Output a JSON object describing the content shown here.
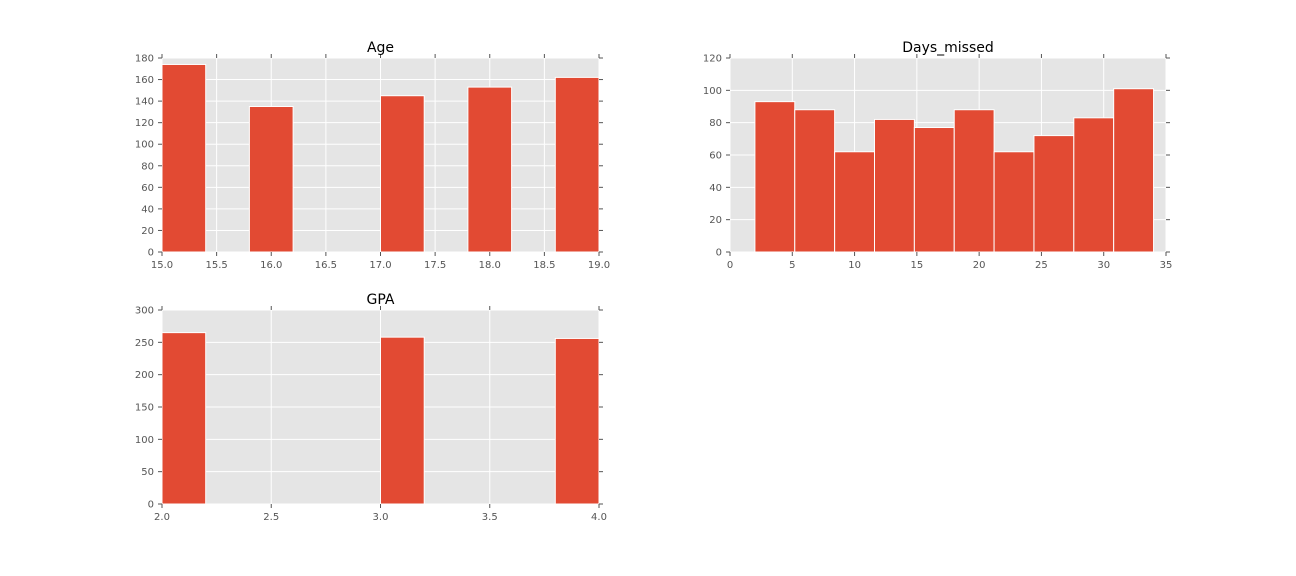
{
  "colors": {
    "bar": "#E24A33",
    "plot_bg": "#E5E5E5",
    "grid": "#FFFFFF",
    "tick_text": "#555555"
  },
  "chart_data": [
    {
      "type": "bar",
      "title": "Age",
      "xlabel": "",
      "ylabel": "",
      "xlim": [
        15.0,
        19.0
      ],
      "ylim": [
        0,
        180
      ],
      "xticks": [
        "15.0",
        "15.5",
        "16.0",
        "16.5",
        "17.0",
        "17.5",
        "18.0",
        "18.5",
        "19.0"
      ],
      "yticks": [
        "0",
        "20",
        "40",
        "60",
        "80",
        "100",
        "120",
        "140",
        "160",
        "180"
      ],
      "grid": true,
      "bins": [
        {
          "x0": 15.0,
          "x1": 15.4,
          "value": 174
        },
        {
          "x0": 15.4,
          "x1": 15.8,
          "value": 0
        },
        {
          "x0": 15.8,
          "x1": 16.2,
          "value": 135
        },
        {
          "x0": 16.2,
          "x1": 16.6,
          "value": 0
        },
        {
          "x0": 16.6,
          "x1": 17.0,
          "value": 0
        },
        {
          "x0": 17.0,
          "x1": 17.4,
          "value": 145
        },
        {
          "x0": 17.4,
          "x1": 17.8,
          "value": 0
        },
        {
          "x0": 17.8,
          "x1": 18.2,
          "value": 153
        },
        {
          "x0": 18.2,
          "x1": 18.6,
          "value": 0
        },
        {
          "x0": 18.6,
          "x1": 19.0,
          "value": 162
        }
      ]
    },
    {
      "type": "bar",
      "title": "Days_missed",
      "xlabel": "",
      "ylabel": "",
      "xlim": [
        0,
        35
      ],
      "ylim": [
        0,
        120
      ],
      "xticks": [
        "0",
        "5",
        "10",
        "15",
        "20",
        "25",
        "30",
        "35"
      ],
      "yticks": [
        "0",
        "20",
        "40",
        "60",
        "80",
        "100",
        "120"
      ],
      "grid": true,
      "bins": [
        {
          "x0": 2.0,
          "x1": 5.2,
          "value": 93
        },
        {
          "x0": 5.2,
          "x1": 8.4,
          "value": 88
        },
        {
          "x0": 8.4,
          "x1": 11.6,
          "value": 62
        },
        {
          "x0": 11.6,
          "x1": 14.8,
          "value": 82
        },
        {
          "x0": 14.8,
          "x1": 18.0,
          "value": 77
        },
        {
          "x0": 18.0,
          "x1": 21.2,
          "value": 88
        },
        {
          "x0": 21.2,
          "x1": 24.4,
          "value": 62
        },
        {
          "x0": 24.4,
          "x1": 27.6,
          "value": 72
        },
        {
          "x0": 27.6,
          "x1": 30.8,
          "value": 83
        },
        {
          "x0": 30.8,
          "x1": 34.0,
          "value": 101
        }
      ]
    },
    {
      "type": "bar",
      "title": "GPA",
      "xlabel": "",
      "ylabel": "",
      "xlim": [
        2.0,
        4.0
      ],
      "ylim": [
        0,
        300
      ],
      "xticks": [
        "2.0",
        "2.5",
        "3.0",
        "3.5",
        "4.0"
      ],
      "yticks": [
        "0",
        "50",
        "100",
        "150",
        "200",
        "250",
        "300"
      ],
      "grid": true,
      "bins": [
        {
          "x0": 2.0,
          "x1": 2.2,
          "value": 265
        },
        {
          "x0": 2.2,
          "x1": 2.4,
          "value": 0
        },
        {
          "x0": 2.4,
          "x1": 2.6,
          "value": 0
        },
        {
          "x0": 2.6,
          "x1": 2.8,
          "value": 0
        },
        {
          "x0": 2.8,
          "x1": 3.0,
          "value": 0
        },
        {
          "x0": 3.0,
          "x1": 3.2,
          "value": 258
        },
        {
          "x0": 3.2,
          "x1": 3.4,
          "value": 0
        },
        {
          "x0": 3.4,
          "x1": 3.6,
          "value": 0
        },
        {
          "x0": 3.6,
          "x1": 3.8,
          "value": 0
        },
        {
          "x0": 3.8,
          "x1": 4.0,
          "value": 256
        }
      ]
    }
  ]
}
